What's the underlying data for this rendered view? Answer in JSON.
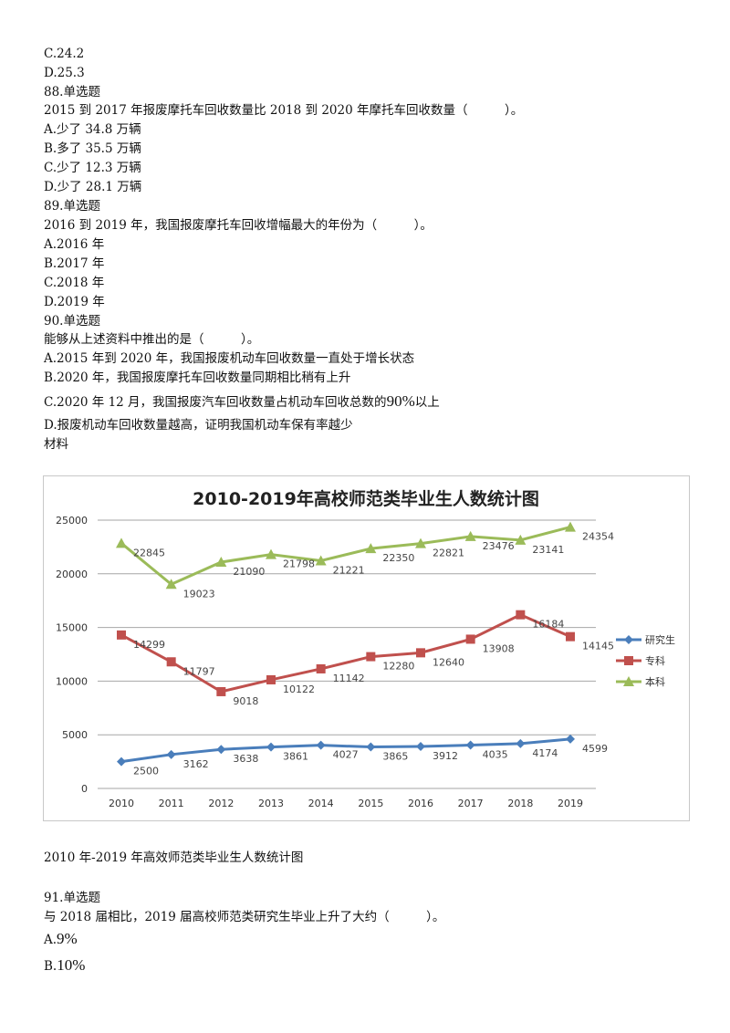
{
  "lines": [
    "C.24.2",
    "D.25.3",
    "88.单选题",
    "2015 到 2017 年报废摩托车回收数量比 2018 到 2020 年摩托车回收数量（　　　）。",
    "A.少了 34.8 万辆",
    "B.多了 35.5 万辆",
    "C.少了 12.3 万辆",
    "D.少了 28.1 万辆",
    "89.单选题",
    "2016 到 2019 年，我国报废摩托车回收增幅最大的年份为（　　　）。",
    "A.2016 年",
    "B.2017 年",
    "C.2018 年",
    "D.2019 年",
    "90.单选题",
    "能够从上述资料中推出的是（　　　）。",
    "A.2015 年到 2020 年，我国报废机动车回收数量一直处于增长状态",
    "B.2020 年，我国报废摩托车回收数量同期相比稍有上升"
  ],
  "q90_c": {
    "before": "C.2020 年 12 月，我国报废汽车回收数量占机动车回收总数的",
    "pct": "90%",
    "after": "以上"
  },
  "q90_d": "D.报废机动车回收数量越高，证明我国机动车保有率越少",
  "material_label": "材料",
  "chart_caption": "2010 年-2019 年高效师范类毕业生人数统计图",
  "q91": {
    "header": "91.单选题",
    "stem": "与 2018 届相比，2019 届高校师范类研究生毕业上升了大约（　　　）。",
    "options": [
      {
        "letter": "A.",
        "value": "9%"
      },
      {
        "letter": "B.",
        "value": "10%"
      }
    ]
  },
  "chart_data": {
    "type": "line",
    "title": "2010-2019年高校师范类毕业生人数统计图",
    "categories": [
      "2010",
      "2011",
      "2012",
      "2013",
      "2014",
      "2015",
      "2016",
      "2017",
      "2018",
      "2019"
    ],
    "ylim": [
      0,
      25000
    ],
    "yticks": [
      "0",
      "5000",
      "10000",
      "15000",
      "20000",
      "25000"
    ],
    "grid": true,
    "legend_position": "right",
    "series": [
      {
        "name": "研究生",
        "color": "#4a7ebb",
        "marker": "diamond",
        "values": [
          2500,
          3162,
          3638,
          3861,
          4027,
          3865,
          3912,
          4035,
          4174,
          4599
        ]
      },
      {
        "name": "专科",
        "color": "#c0504d",
        "marker": "square",
        "values": [
          14299,
          11797,
          9018,
          10122,
          11142,
          12280,
          12640,
          13908,
          16184,
          14145
        ]
      },
      {
        "name": "本科",
        "color": "#9bbb59",
        "marker": "triangle",
        "values": [
          22845,
          19023,
          21090,
          21798,
          21221,
          22350,
          22821,
          23476,
          23141,
          24354
        ]
      }
    ]
  }
}
